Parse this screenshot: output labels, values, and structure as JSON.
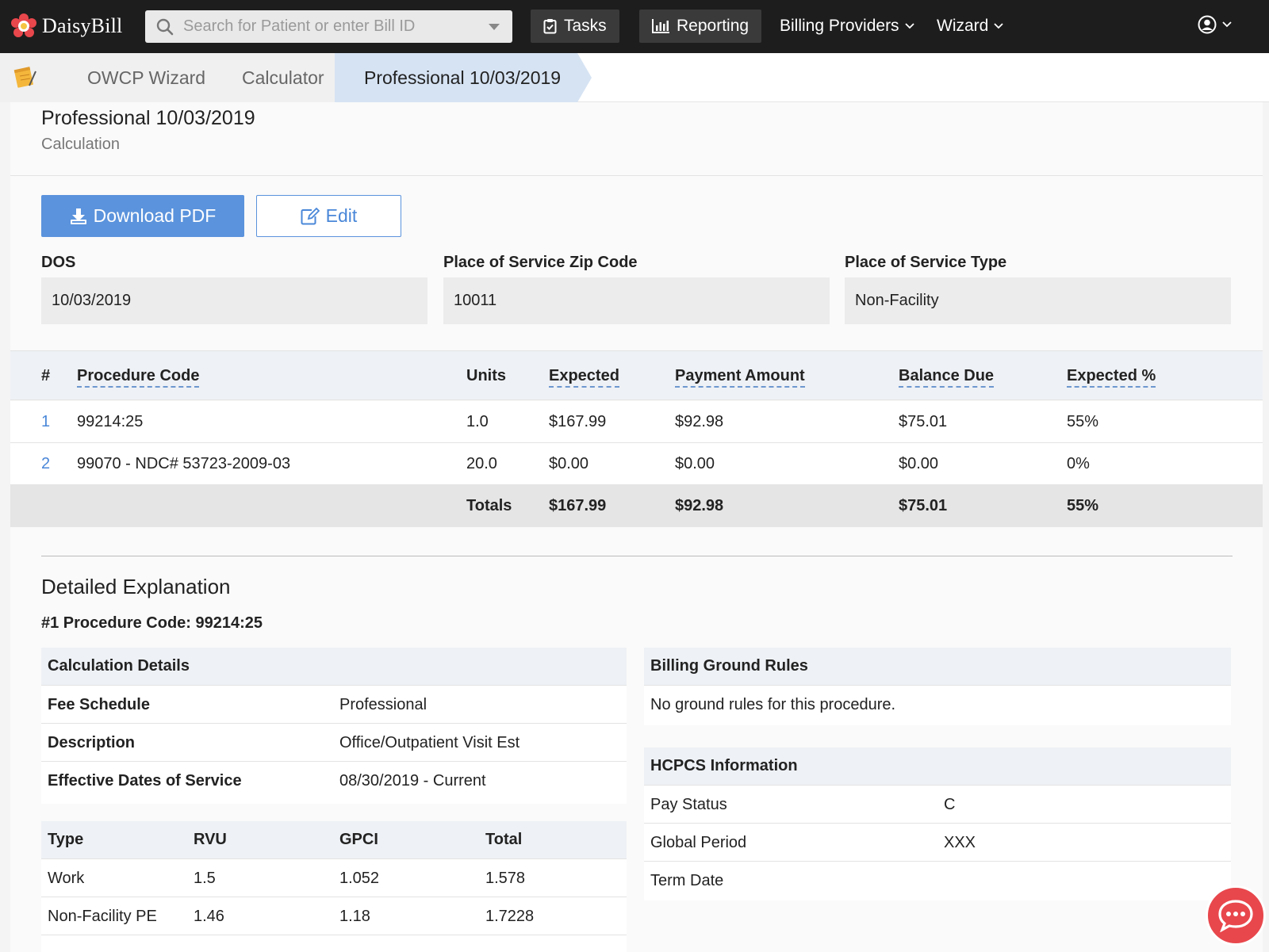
{
  "brand": {
    "name": "DaisyBill"
  },
  "search": {
    "placeholder": "Search for Patient or enter Bill ID"
  },
  "nav": {
    "tasks": "Tasks",
    "reporting": "Reporting",
    "billing_providers": "Billing Providers",
    "wizard": "Wizard"
  },
  "breadcrumb": [
    "OWCP Wizard",
    "Calculator",
    "Professional 10/03/2019"
  ],
  "page": {
    "title": "Professional 10/03/2019",
    "subtitle": "Calculation"
  },
  "actions": {
    "download": "Download PDF",
    "edit": "Edit"
  },
  "fields": [
    {
      "label": "DOS",
      "value": "10/03/2019"
    },
    {
      "label": "Place of Service Zip Code",
      "value": "10011"
    },
    {
      "label": "Place of Service Type",
      "value": "Non-Facility"
    }
  ],
  "procedures": {
    "headers": [
      "#",
      "Procedure Code",
      "Units",
      "Expected",
      "Payment Amount",
      "Balance Due",
      "Expected %"
    ],
    "rows": [
      [
        "1",
        "99214:25",
        "1.0",
        "$167.99",
        "$92.98",
        "$75.01",
        "55%"
      ],
      [
        "2",
        "99070 - NDC# 53723-2009-03",
        "20.0",
        "$0.00",
        "$0.00",
        "$0.00",
        "0%"
      ]
    ],
    "totals": [
      "Totals",
      "$167.99",
      "$92.98",
      "$75.01",
      "55%"
    ]
  },
  "explanation": {
    "title": "Detailed Explanation",
    "subtitle": "#1 Procedure Code: 99214:25",
    "calc_details": {
      "title": "Calculation Details",
      "rows": [
        [
          "Fee Schedule",
          "Professional"
        ],
        [
          "Description",
          "Office/Outpatient Visit Est"
        ],
        [
          "Effective Dates of Service",
          "08/30/2019 - Current"
        ]
      ]
    },
    "rvu_table": {
      "headers": [
        "Type",
        "RVU",
        "GPCI",
        "Total"
      ],
      "rows": [
        [
          "Work",
          "1.5",
          "1.052",
          "1.578"
        ],
        [
          "Non-Facility PE",
          "1.46",
          "1.18",
          "1.7228"
        ]
      ]
    },
    "ground_rules": {
      "title": "Billing Ground Rules",
      "text": "No ground rules for this procedure."
    },
    "hcpcs": {
      "title": "HCPCS Information",
      "rows": [
        [
          "Pay Status",
          "C"
        ],
        [
          "Global Period",
          "XXX"
        ],
        [
          "Term Date",
          ""
        ]
      ]
    }
  },
  "colors": {
    "accent": "#5b93dc",
    "nav_bg": "#1d1d1d",
    "chat": "#e8474c"
  }
}
